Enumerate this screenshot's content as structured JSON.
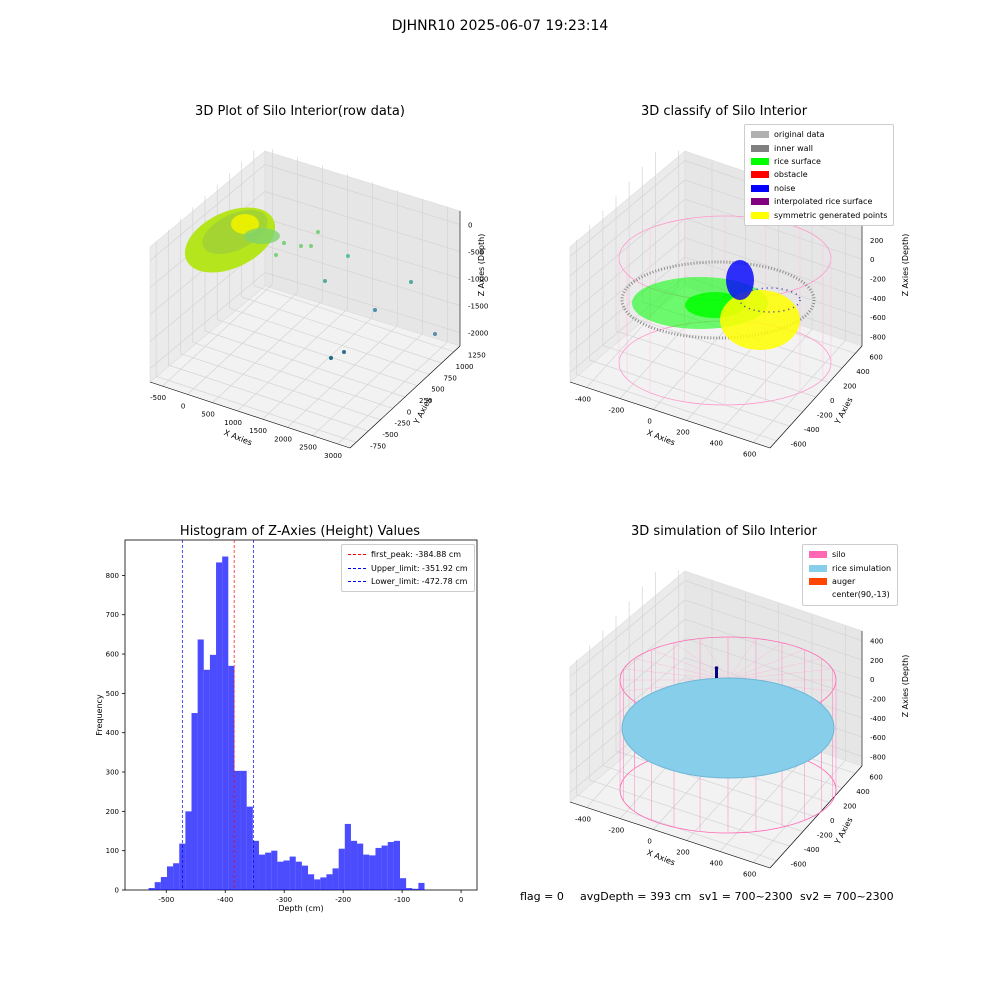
{
  "suptitle": "DJHNR10 2025-06-07 19:23:14",
  "chart_data": [
    {
      "type": "scatter",
      "title": "3D Plot of Silo Interior(row data)",
      "xlabel": "X Axies",
      "ylabel": "Y Axies",
      "zlabel": "Z Axies (Depth)",
      "x_ticks": [
        "-500",
        "0",
        "500",
        "1000",
        "1500",
        "2000",
        "2500",
        "3000"
      ],
      "y_ticks": [
        "-750",
        "-500",
        "-250",
        "0",
        "250",
        "500",
        "750",
        "1000",
        "1250"
      ],
      "z_ticks": [
        "-2000",
        "-1500",
        "-1000",
        "-500",
        "0"
      ],
      "outlier_points": [
        {
          "x": 900,
          "y": 1000,
          "z": -500
        },
        {
          "x": 1100,
          "y": 900,
          "z": -600
        },
        {
          "x": 1500,
          "y": 800,
          "z": -800
        },
        {
          "x": 1300,
          "y": 700,
          "z": -900
        },
        {
          "x": 2000,
          "y": 900,
          "z": -1100
        },
        {
          "x": 2500,
          "y": 700,
          "z": -1300
        },
        {
          "x": 3000,
          "y": 600,
          "z": -1700
        },
        {
          "x": 1200,
          "y": 300,
          "z": -1600
        },
        {
          "x": 1100,
          "y": 200,
          "z": -1500
        }
      ]
    },
    {
      "type": "scatter",
      "title": "3D classify of Silo Interior",
      "xlabel": "X Axies",
      "ylabel": "Y Axies",
      "zlabel": "Z Axies (Depth)",
      "x_ticks": [
        "-400",
        "-200",
        "0",
        "200",
        "400",
        "600"
      ],
      "y_ticks": [
        "-600",
        "-400",
        "-200",
        "0",
        "200",
        "400",
        "600"
      ],
      "z_ticks": [
        "-800",
        "-600",
        "-400",
        "-200",
        "0",
        "200",
        "400"
      ],
      "legend": [
        {
          "label": "original data",
          "color": "#b0b0b0"
        },
        {
          "label": "inner wall",
          "color": "#808080"
        },
        {
          "label": "rice surface",
          "color": "#00ff00"
        },
        {
          "label": "obstacle",
          "color": "#ff0000"
        },
        {
          "label": "noise",
          "color": "#0000ff"
        },
        {
          "label": "interpolated rice surface",
          "color": "#800080"
        },
        {
          "label": "symmetric generated points",
          "color": "#ffff00"
        }
      ]
    },
    {
      "type": "bar",
      "title": "Histogram of Z-Axies (Height) Values",
      "xlabel": "Depth (cm)",
      "ylabel": "Frequency",
      "xlim": [
        -570,
        27
      ],
      "ylim": [
        0,
        890
      ],
      "x_ticks": [
        -500,
        -400,
        -300,
        -200,
        -100,
        0
      ],
      "y_ticks": [
        0,
        100,
        200,
        300,
        400,
        500,
        600,
        700,
        800
      ],
      "bin_start": -530,
      "bin_width": 10.4,
      "values": [
        5,
        20,
        33,
        60,
        68,
        118,
        200,
        450,
        637,
        560,
        598,
        833,
        848,
        570,
        303,
        303,
        212,
        125,
        90,
        95,
        100,
        72,
        75,
        85,
        72,
        62,
        40,
        27,
        32,
        40,
        55,
        105,
        168,
        125,
        118,
        90,
        88,
        107,
        113,
        122,
        125,
        30,
        5,
        3,
        18
      ],
      "bar_color": "#0000ff",
      "vlines": [
        {
          "x": -384.88,
          "color": "#ff0000",
          "label": "first_peak: -384.88 cm"
        },
        {
          "x": -351.92,
          "color": "#0000ff",
          "label": "Upper_limit: -351.92 cm"
        },
        {
          "x": -472.78,
          "color": "#0000ff",
          "label": "Lower_limit: -472.78 cm"
        }
      ]
    },
    {
      "type": "scatter",
      "title": "3D simulation of Silo Interior",
      "xlabel": "X Axies",
      "ylabel": "Y Axies",
      "zlabel": "Z Axies (Depth)",
      "x_ticks": [
        "-400",
        "-200",
        "0",
        "200",
        "400",
        "600"
      ],
      "y_ticks": [
        "-600",
        "-400",
        "-200",
        "0",
        "200",
        "400",
        "600"
      ],
      "z_ticks": [
        "-800",
        "-600",
        "-400",
        "-200",
        "0",
        "200",
        "400"
      ],
      "legend": [
        {
          "label": "silo",
          "color": "#ff69b4"
        },
        {
          "label": "rice simulation",
          "color": "#87ceeb"
        },
        {
          "label": "auger",
          "color": "#ff4500"
        },
        {
          "label": "center(90,-13)",
          "color": ""
        }
      ]
    }
  ],
  "footer": {
    "flag": "flag = 0",
    "avg": "avgDepth = 393 cm",
    "sv1": "sv1 = 700~2300",
    "sv2": "sv2 = 700~2300"
  }
}
